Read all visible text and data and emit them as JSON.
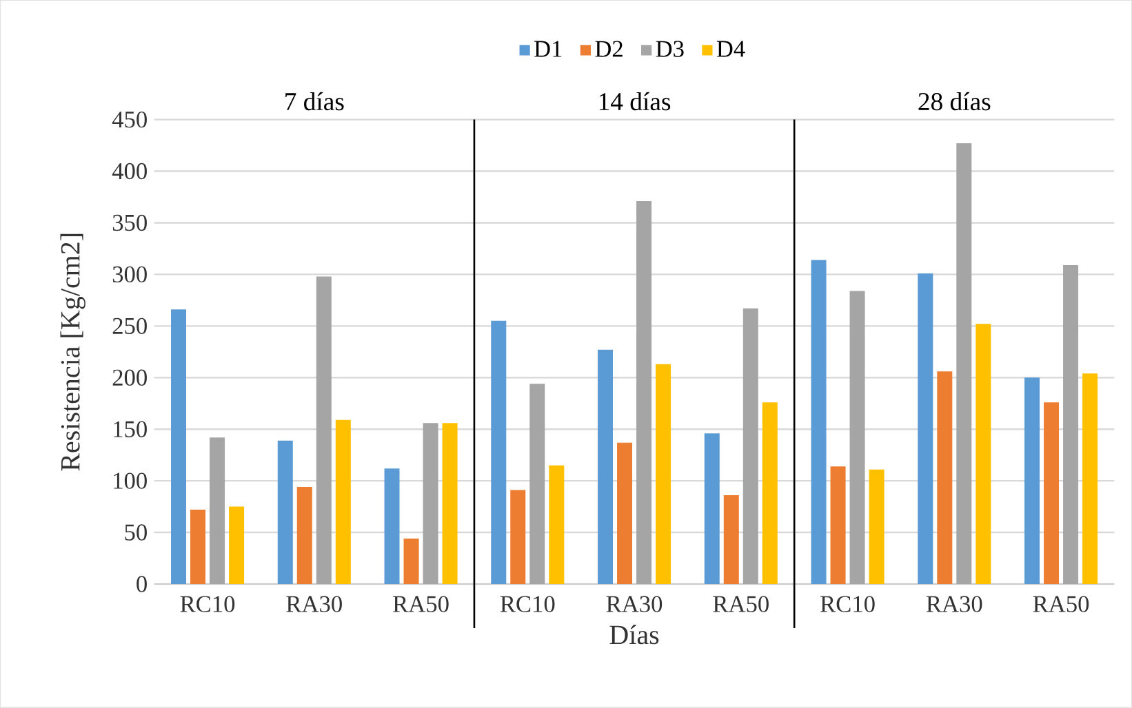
{
  "chart_data": {
    "type": "bar",
    "xlabel": "Días",
    "ylabel": "Resistencia [Kg/cm2]",
    "categories": [
      "RC10",
      "RA30",
      "RA50",
      "RC10",
      "RA30",
      "RA50",
      "RC10",
      "RA30",
      "RA50"
    ],
    "series": [
      {
        "name": "D1",
        "color": "#5b9bd5",
        "values": [
          266,
          139,
          112,
          255,
          227,
          146,
          314,
          301,
          200
        ]
      },
      {
        "name": "D2",
        "color": "#ed7d31",
        "values": [
          72,
          94,
          44,
          91,
          137,
          86,
          114,
          206,
          176
        ]
      },
      {
        "name": "D3",
        "color": "#a5a5a5",
        "values": [
          142,
          298,
          156,
          194,
          371,
          267,
          284,
          427,
          309
        ]
      },
      {
        "name": "D4",
        "color": "#ffc000",
        "values": [
          75,
          159,
          156,
          115,
          213,
          176,
          111,
          252,
          204
        ]
      }
    ],
    "annotations": [
      "7 días",
      "14 días",
      "28 días"
    ],
    "ylim": [
      0,
      450
    ],
    "yticks": [
      0,
      50,
      100,
      150,
      200,
      250,
      300,
      350,
      400,
      450
    ],
    "grid": "y",
    "legend": "top"
  }
}
